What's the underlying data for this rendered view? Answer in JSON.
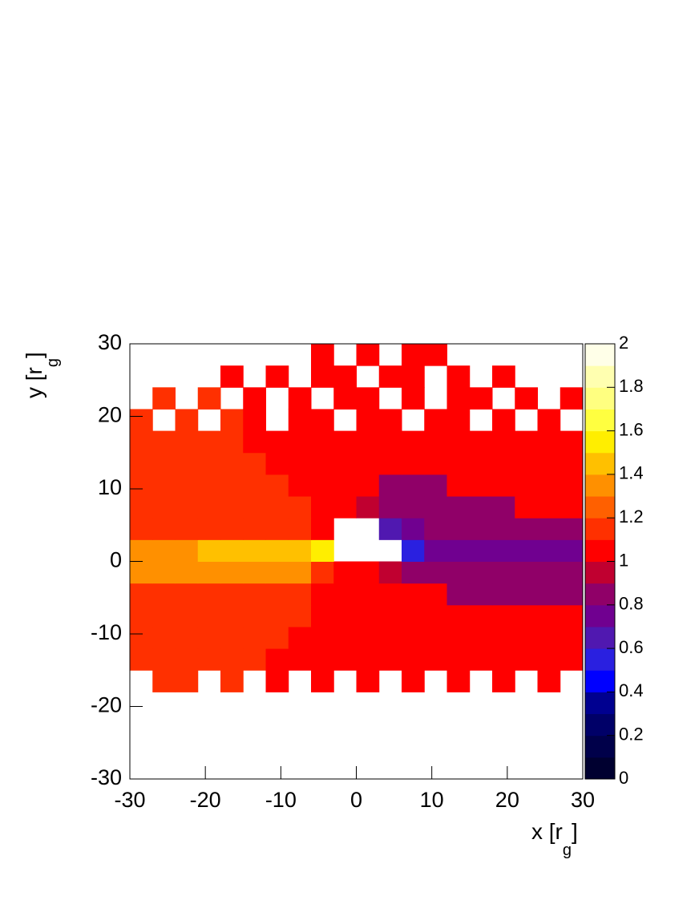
{
  "chart_data": {
    "type": "heatmap",
    "xlabel": {
      "main": "x [r",
      "sub": "g",
      "end": "]"
    },
    "ylabel": {
      "main": "y [r",
      "sub": "g",
      "end": "]"
    },
    "xlim": [
      -30,
      30
    ],
    "ylim": [
      -30,
      30
    ],
    "xticks": [
      -30,
      -20,
      -10,
      0,
      10,
      20,
      30
    ],
    "yticks": [
      -30,
      -20,
      -10,
      0,
      10,
      20,
      30
    ],
    "xbins": [
      -30,
      -27,
      -24,
      -21,
      -18,
      -15,
      -12,
      -9,
      -6,
      -3,
      0,
      3,
      6,
      9,
      12,
      15,
      18,
      21,
      24,
      27,
      30
    ],
    "ybins": [
      -30,
      -27,
      -24,
      -21,
      -18,
      -15,
      -12,
      -9,
      -6,
      -3,
      0,
      3,
      6,
      9,
      12,
      15,
      18,
      21,
      24,
      27,
      30
    ],
    "z": [
      [
        null,
        null,
        null,
        null,
        null,
        null,
        null,
        null,
        null,
        null,
        null,
        null,
        null,
        null,
        null,
        null,
        null,
        null,
        null,
        null
      ],
      [
        null,
        null,
        null,
        null,
        null,
        null,
        null,
        null,
        null,
        null,
        null,
        null,
        null,
        null,
        null,
        null,
        null,
        null,
        null,
        null
      ],
      [
        null,
        null,
        null,
        null,
        null,
        null,
        null,
        null,
        null,
        null,
        null,
        null,
        null,
        null,
        null,
        null,
        null,
        null,
        null,
        null
      ],
      [
        null,
        null,
        null,
        null,
        null,
        null,
        null,
        null,
        null,
        null,
        null,
        null,
        null,
        null,
        null,
        null,
        null,
        null,
        null,
        null
      ],
      [
        null,
        1.1,
        1.1,
        null,
        1.1,
        null,
        1,
        null,
        1,
        null,
        1,
        null,
        1,
        null,
        1,
        null,
        1,
        null,
        1,
        null
      ],
      [
        1.1,
        1.1,
        1.1,
        1.1,
        1.1,
        1.1,
        1,
        1,
        1,
        1,
        1,
        1,
        1,
        1,
        1,
        1,
        1,
        1,
        1,
        1
      ],
      [
        1.1,
        1.1,
        1.1,
        1.1,
        1.1,
        1.1,
        1.1,
        1,
        1,
        1,
        1,
        1,
        1,
        1,
        1,
        1,
        1,
        1,
        1,
        1
      ],
      [
        1.1,
        1.1,
        1.1,
        1.1,
        1.1,
        1.1,
        1.1,
        1.1,
        1,
        1,
        1,
        1,
        1,
        1,
        1,
        1,
        1,
        1,
        1,
        1
      ],
      [
        1.1,
        1.1,
        1.1,
        1.1,
        1.1,
        1.1,
        1.1,
        1.1,
        1,
        1,
        1,
        1,
        1,
        1,
        0.85,
        0.85,
        0.85,
        0.85,
        0.85,
        0.85
      ],
      [
        1.3,
        1.3,
        1.3,
        1.3,
        1.3,
        1.3,
        1.3,
        1.3,
        1.1,
        1,
        1,
        0.95,
        0.85,
        0.85,
        0.85,
        0.85,
        0.85,
        0.85,
        0.85,
        0.85
      ],
      [
        1.3,
        1.3,
        1.3,
        1.4,
        1.4,
        1.4,
        1.4,
        1.4,
        1.5,
        null,
        null,
        null,
        0.5,
        0.7,
        0.75,
        0.75,
        0.75,
        0.75,
        0.75,
        0.75
      ],
      [
        1.1,
        1.1,
        1.1,
        1.1,
        1.1,
        1.1,
        1.1,
        1.1,
        1,
        null,
        null,
        0.6,
        0.7,
        0.8,
        0.85,
        0.85,
        0.85,
        0.85,
        0.85,
        0.85
      ],
      [
        1.1,
        1.1,
        1.1,
        1.1,
        1.1,
        1.1,
        1.1,
        1.1,
        1,
        1,
        0.9,
        0.85,
        0.85,
        0.85,
        0.85,
        0.85,
        0.85,
        1,
        1,
        1
      ],
      [
        1.1,
        1.1,
        1.1,
        1.1,
        1.1,
        1.1,
        1.1,
        1,
        1,
        1,
        1,
        0.85,
        0.85,
        0.85,
        1,
        1,
        1,
        1,
        1,
        1
      ],
      [
        1.1,
        1.1,
        1.1,
        1.1,
        1.1,
        1.1,
        1,
        1,
        1,
        1,
        1,
        1,
        1,
        1,
        1,
        1,
        1,
        1,
        1,
        1
      ],
      [
        1.1,
        1.1,
        1.1,
        1.1,
        1.1,
        1,
        1,
        1,
        1,
        1,
        1,
        1,
        1,
        1,
        1,
        1,
        1,
        1,
        1,
        1
      ],
      [
        1.1,
        null,
        1.1,
        null,
        1.1,
        1,
        null,
        1,
        1,
        null,
        1,
        1,
        null,
        1,
        1,
        null,
        1,
        null,
        1,
        null
      ],
      [
        null,
        1.1,
        null,
        1.1,
        null,
        1,
        null,
        1,
        null,
        1,
        1,
        null,
        1,
        null,
        1,
        1,
        null,
        1,
        null,
        1
      ],
      [
        null,
        null,
        null,
        null,
        1,
        null,
        1,
        null,
        1,
        1,
        null,
        1,
        1,
        null,
        1,
        null,
        1,
        null,
        null,
        null
      ],
      [
        null,
        null,
        null,
        null,
        null,
        null,
        null,
        null,
        1,
        null,
        1,
        null,
        1,
        1,
        null,
        null,
        null,
        null,
        null,
        null
      ]
    ],
    "zlim": [
      0,
      2
    ],
    "zticks": [
      0,
      0.2,
      0.4,
      0.6,
      0.8,
      1,
      1.2,
      1.4,
      1.6,
      1.8,
      2
    ],
    "colors": [
      "#000030",
      "#00004a",
      "#000068",
      "#000090",
      "#0000ff",
      "#2a20e0",
      "#5018b0",
      "#700090",
      "#900068",
      "#c00030",
      "#ff0000",
      "#ff3000",
      "#ff6000",
      "#ff9000",
      "#ffc000",
      "#ffee00",
      "#ffff40",
      "#ffff80",
      "#ffffb0",
      "#ffffe8"
    ]
  }
}
